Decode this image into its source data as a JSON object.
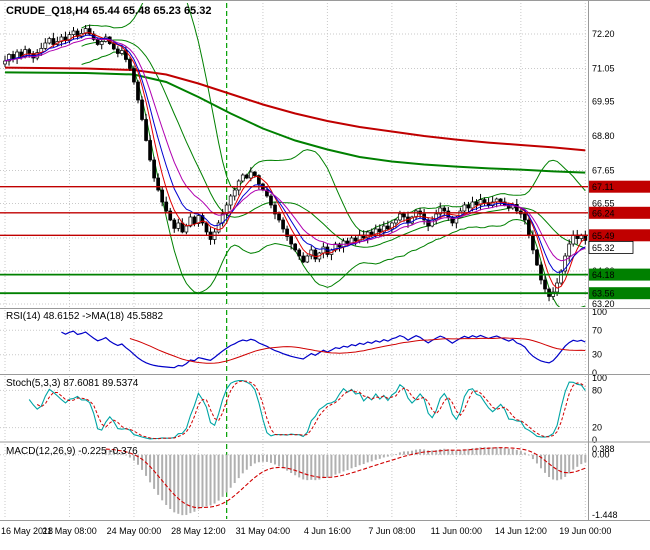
{
  "colors": {
    "grid": "#c9c9c9",
    "separator": "#9a9a9a",
    "axis_text": "#000000",
    "candle_up": "#ffffff",
    "candle_down": "#000000",
    "candle_outline": "#000000",
    "rsi_line": "#0000c8",
    "rsi_ma": "#d00000",
    "stoch_line": "#00a5a5",
    "stoch_signal": "#d00000",
    "macd_hist": "#b0b0b0",
    "macd_signal": "#d00000"
  },
  "chart_data": {
    "type": "candlestick",
    "symbol": "CRUDE_Q18",
    "timeframe": "H4",
    "symbol_header": "CRUDE_Q18,H4 65.44 65.48 65.23 65.32",
    "ohlc": {
      "open": "65.44",
      "high": "65.48",
      "low": "65.23",
      "close": "65.32"
    },
    "current_price": "65.32",
    "x_labels": [
      "16 May 2018",
      "21 May 08:00",
      "24 May 00:00",
      "28 May 12:00",
      "31 May 04:00",
      "4 Jun 16:00",
      "7 Jun 08:00",
      "11 Jun 00:00",
      "14 Jun 12:00",
      "19 Jun 00:00"
    ],
    "y_axis_labels": [
      "72.20",
      "71.05",
      "69.95",
      "68.80",
      "67.65",
      "66.55",
      "65.40",
      "64.30",
      "63.20"
    ],
    "candles": {
      "first_open": 71.2,
      "closes": [
        71.3,
        71.52,
        71.38,
        71.6,
        71.45,
        71.68,
        71.55,
        71.4,
        71.58,
        71.72,
        71.9,
        72.05,
        71.85,
        71.95,
        72.1,
        71.98,
        72.18,
        72.3,
        72.12,
        72.22,
        72.38,
        72.2,
        72.02,
        71.85,
        71.95,
        72.1,
        71.88,
        71.7,
        71.55,
        71.65,
        71.35,
        71.05,
        70.6,
        70.0,
        69.35,
        68.65,
        68.0,
        67.4,
        67.0,
        66.6,
        66.3,
        66.0,
        65.72,
        65.9,
        65.6,
        65.8,
        66.1,
        65.88,
        66.15,
        65.9,
        65.6,
        65.35,
        65.6,
        65.9,
        66.2,
        66.5,
        66.8,
        67.0,
        67.3,
        67.5,
        67.4,
        67.6,
        67.48,
        67.2,
        67.0,
        66.8,
        66.5,
        66.2,
        66.0,
        65.7,
        65.45,
        65.2,
        65.0,
        64.8,
        64.6,
        64.8,
        65.0,
        64.7,
        64.9,
        65.1,
        64.85,
        65.0,
        65.2,
        65.1,
        65.3,
        65.2,
        65.4,
        65.3,
        65.5,
        65.4,
        65.6,
        65.5,
        65.7,
        65.6,
        65.8,
        65.7,
        65.9,
        66.0,
        66.2,
        66.1,
        65.9,
        66.1,
        66.3,
        66.2,
        66.0,
        65.8,
        66.0,
        66.2,
        66.4,
        66.3,
        66.1,
        65.9,
        66.1,
        66.3,
        66.5,
        66.4,
        66.6,
        66.5,
        66.68,
        66.58,
        66.48,
        66.6,
        66.7,
        66.6,
        66.5,
        66.4,
        66.52,
        66.3,
        66.2,
        66.0,
        65.5,
        65.0,
        64.5,
        64.0,
        63.7,
        63.45,
        63.6,
        63.9,
        64.3,
        64.8,
        65.2,
        65.5,
        65.38,
        65.5,
        65.32
      ]
    },
    "levels": [
      {
        "price": 67.11,
        "label": "67.11",
        "color": "#c00000",
        "width": 1.3
      },
      {
        "price": 66.24,
        "label": "66.24",
        "color": "#c00000",
        "width": 1.3
      },
      {
        "price": 65.49,
        "label": "65.49",
        "color": "#c00000",
        "width": 1.3
      },
      {
        "price": 64.18,
        "label": "64.18",
        "color": "#008000",
        "width": 1.8
      },
      {
        "price": 63.56,
        "label": "63.56",
        "color": "#008000",
        "width": 1.8
      }
    ],
    "vline": {
      "index": 55,
      "color": "#00a000"
    },
    "overlays": {
      "bollinger": {
        "period": 20,
        "deviation": 2,
        "color": "#008000"
      },
      "ma_long": {
        "color": "#c00000",
        "points": [
          [
            0,
            71.08
          ],
          [
            20,
            71.05
          ],
          [
            32,
            71.0
          ],
          [
            40,
            70.85
          ],
          [
            48,
            70.55
          ],
          [
            56,
            70.2
          ],
          [
            64,
            69.85
          ],
          [
            72,
            69.55
          ],
          [
            80,
            69.3
          ],
          [
            88,
            69.1
          ],
          [
            96,
            68.95
          ],
          [
            104,
            68.8
          ],
          [
            112,
            68.68
          ],
          [
            120,
            68.58
          ],
          [
            128,
            68.5
          ],
          [
            136,
            68.42
          ],
          [
            144,
            68.32
          ]
        ]
      },
      "ma_slow": {
        "color": "#008000",
        "points": [
          [
            0,
            70.92
          ],
          [
            20,
            70.9
          ],
          [
            32,
            70.85
          ],
          [
            40,
            70.6
          ],
          [
            48,
            70.1
          ],
          [
            56,
            69.55
          ],
          [
            64,
            69.05
          ],
          [
            72,
            68.65
          ],
          [
            80,
            68.35
          ],
          [
            88,
            68.1
          ],
          [
            96,
            67.95
          ],
          [
            104,
            67.85
          ],
          [
            112,
            67.78
          ],
          [
            120,
            67.72
          ],
          [
            128,
            67.68
          ],
          [
            136,
            67.62
          ],
          [
            144,
            67.58
          ]
        ]
      },
      "fast_mas": [
        {
          "type": "sma",
          "period": 5,
          "color": "#e00000"
        },
        {
          "type": "ema",
          "period": 8,
          "color": "#0000d0"
        },
        {
          "type": "ema",
          "period": 13,
          "color": "#b000b0"
        }
      ]
    },
    "indicators": {
      "rsi": {
        "label": "RSI(14) 48.6152 ->MA(18) 45.5882",
        "period": 14,
        "ma_period": 18,
        "levels": [
          30,
          70
        ],
        "axis_labels": [
          "100",
          "70",
          "30",
          "0"
        ]
      },
      "stoch": {
        "label": "Stoch(5,3,3) 87.6081 89.5374",
        "k": 5,
        "d": 3,
        "slowing": 3,
        "levels": [
          20,
          80
        ],
        "axis_labels": [
          "100",
          "80",
          "20",
          "0"
        ]
      },
      "macd": {
        "label": "MACD(12,26,9) -0.225 -0.376",
        "fast": 12,
        "slow": 26,
        "signal": 9,
        "axis_labels": [
          "0.388",
          "0.00",
          "-1.448"
        ]
      }
    }
  }
}
